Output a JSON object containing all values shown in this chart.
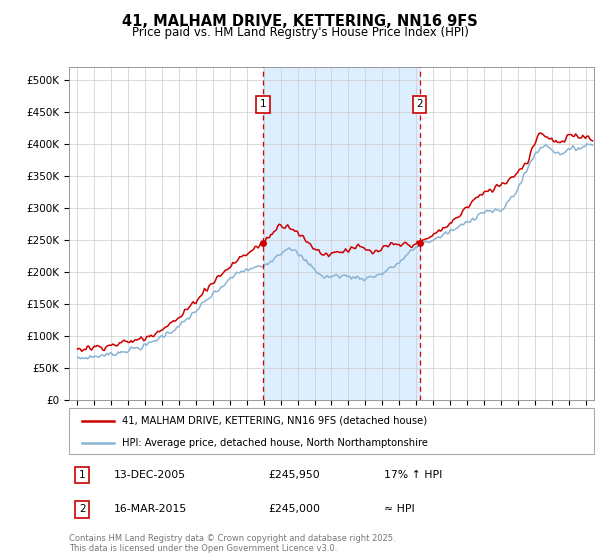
{
  "title": "41, MALHAM DRIVE, KETTERING, NN16 9FS",
  "subtitle": "Price paid vs. HM Land Registry's House Price Index (HPI)",
  "legend_line1": "41, MALHAM DRIVE, KETTERING, NN16 9FS (detached house)",
  "legend_line2": "HPI: Average price, detached house, North Northamptonshire",
  "annotation1_date": "13-DEC-2005",
  "annotation1_price": "£245,950",
  "annotation1_hpi": "17% ↑ HPI",
  "annotation2_date": "16-MAR-2015",
  "annotation2_price": "£245,000",
  "annotation2_hpi": "≈ HPI",
  "footer": "Contains HM Land Registry data © Crown copyright and database right 2025.\nThis data is licensed under the Open Government Licence v3.0.",
  "vline1_x": 2005.96,
  "vline2_x": 2015.21,
  "sale1_x": 2005.96,
  "sale1_y": 245950,
  "sale2_x": 2015.21,
  "sale2_y": 245000,
  "ylim": [
    0,
    520000
  ],
  "xlim": [
    1994.5,
    2025.5
  ],
  "red_color": "#cc0000",
  "blue_color": "#8ab4d4",
  "shade_color": "#ddeeff"
}
